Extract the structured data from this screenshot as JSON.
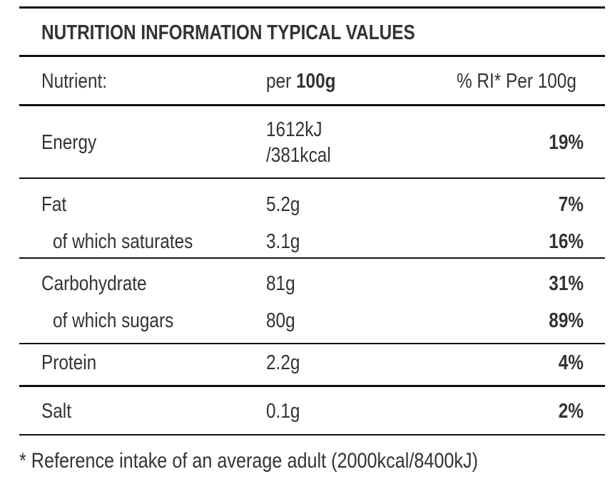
{
  "header": {
    "title": "NUTRITION INFORMATION TYPICAL VALUES"
  },
  "table": {
    "columns": {
      "nutrient": "Nutrient:",
      "amount": {
        "prefix": "per",
        "emphasis": "100g"
      },
      "ri": "% RI* Per 100g"
    },
    "rows": [
      {
        "nutrient": "Energy",
        "amount": [
          "1612kJ",
          "/381kcal"
        ],
        "ri": "19%"
      },
      {
        "nutrient": "Fat",
        "amount": "5.2g",
        "ri": "7%"
      },
      {
        "nutrient": "of which saturates",
        "amount": "3.1g",
        "ri": "16%"
      },
      {
        "nutrient": "Carbohydrate",
        "amount": "81g",
        "ri": "31%"
      },
      {
        "nutrient": "of which sugars",
        "amount": "80g",
        "ri": "89%"
      },
      {
        "nutrient": "Protein",
        "amount": "2.2g",
        "ri": "4%"
      },
      {
        "nutrient": "Salt",
        "amount": "0.1g",
        "ri": "2%"
      }
    ]
  },
  "footnote": "* Reference intake of an average adult (2000kcal/8400kJ)"
}
